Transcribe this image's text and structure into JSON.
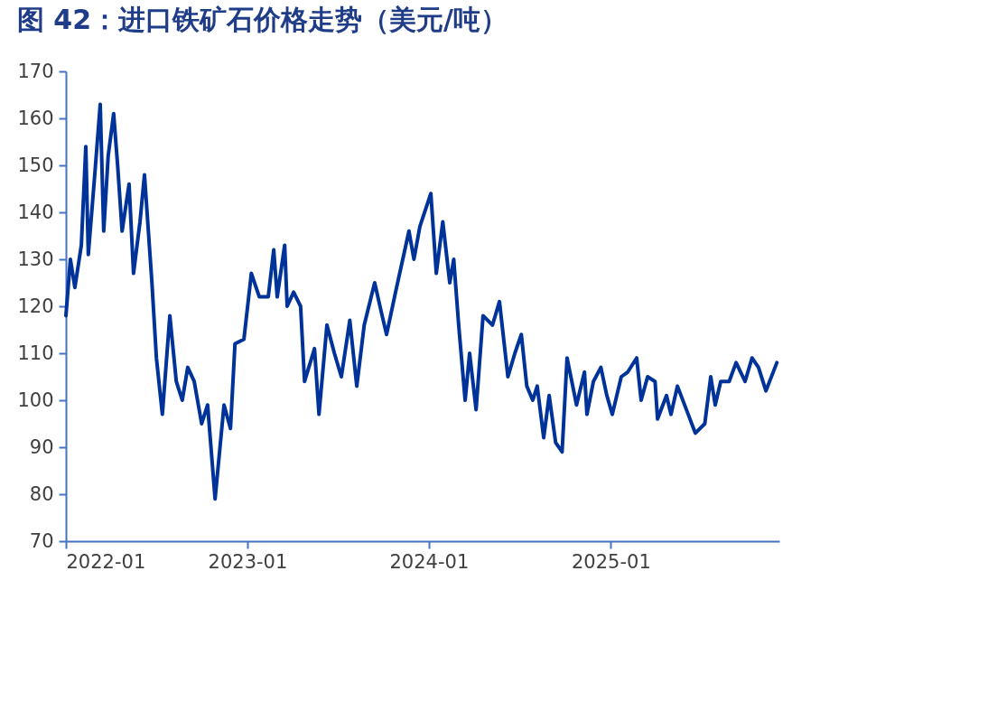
{
  "chart_data": {
    "type": "line",
    "title": "图 42：进口铁矿石价格走势（美元/吨）",
    "x": [
      "2022-01-01",
      "2022-01-10",
      "2022-01-19",
      "2022-02-01",
      "2022-02-10",
      "2022-02-15",
      "2022-02-28",
      "2022-03-11",
      "2022-03-18",
      "2022-03-27",
      "2022-04-07",
      "2022-04-15",
      "2022-04-24",
      "2022-05-08",
      "2022-05-17",
      "2022-05-30",
      "2022-06-08",
      "2022-06-23",
      "2022-07-02",
      "2022-07-14",
      "2022-07-29",
      "2022-08-11",
      "2022-08-23",
      "2022-09-03",
      "2022-09-16",
      "2022-10-01",
      "2022-10-13",
      "2022-10-28",
      "2022-11-15",
      "2022-11-28",
      "2022-12-07",
      "2022-12-25",
      "2023-01-09",
      "2023-01-25",
      "2023-02-12",
      "2023-02-23",
      "2023-03-02",
      "2023-03-17",
      "2023-03-22",
      "2023-04-04",
      "2023-04-18",
      "2023-04-26",
      "2023-05-16",
      "2023-05-25",
      "2023-06-10",
      "2023-06-25",
      "2023-07-09",
      "2023-07-26",
      "2023-08-09",
      "2023-08-24",
      "2023-09-14",
      "2023-09-29",
      "2023-10-08",
      "2023-10-26",
      "2023-11-22",
      "2023-12-02",
      "2023-12-14",
      "2024-01-05",
      "2024-01-16",
      "2024-01-29",
      "2024-02-12",
      "2024-02-20",
      "2024-03-01",
      "2024-03-14",
      "2024-03-23",
      "2024-04-05",
      "2024-04-19",
      "2024-05-08",
      "2024-05-22",
      "2024-06-08",
      "2024-06-22",
      "2024-07-05",
      "2024-07-16",
      "2024-07-28",
      "2024-08-06",
      "2024-08-19",
      "2024-08-30",
      "2024-09-12",
      "2024-09-25",
      "2024-10-05",
      "2024-10-24",
      "2024-11-09",
      "2024-11-14",
      "2024-11-27",
      "2024-12-12",
      "2024-12-24",
      "2025-01-04",
      "2025-01-22",
      "2025-02-04",
      "2025-02-22",
      "2025-03-03",
      "2025-03-16",
      "2025-03-31",
      "2025-04-05",
      "2025-04-23",
      "2025-05-02",
      "2025-05-15",
      "2025-06-02",
      "2025-06-20",
      "2025-07-09",
      "2025-07-21",
      "2025-07-30",
      "2025-08-10",
      "2025-08-27",
      "2025-09-10",
      "2025-09-28",
      "2025-10-12",
      "2025-10-25",
      "2025-11-09",
      "2025-12-01"
    ],
    "series": [
      {
        "color": "#003399",
        "values": [
          118,
          130,
          124,
          133,
          154,
          131,
          148,
          163,
          136,
          152,
          161,
          150,
          136,
          146,
          127,
          138,
          148,
          125,
          109,
          97,
          118,
          104,
          100,
          107,
          104,
          95,
          99,
          79,
          99,
          94,
          112,
          113,
          127,
          122,
          122,
          132,
          122,
          133,
          120,
          123,
          120,
          104,
          111,
          97,
          116,
          110,
          105,
          117,
          103,
          116,
          125,
          118,
          114,
          123,
          136,
          130,
          137,
          144,
          127,
          138,
          125,
          130,
          116,
          100,
          110,
          98,
          118,
          116,
          121,
          105,
          110,
          114,
          103,
          100,
          103,
          92,
          101,
          91,
          89,
          109,
          99,
          106,
          97,
          104,
          107,
          101,
          97,
          105,
          106,
          109,
          100,
          105,
          104,
          96,
          101,
          97,
          103,
          98,
          93,
          95,
          105,
          99,
          104,
          104,
          108,
          104,
          109,
          107,
          102,
          108
        ]
      }
    ],
    "xlim": [
      "2022-01-01",
      "2025-12-06"
    ],
    "xticks": [
      "2022-01",
      "2023-01",
      "2024-01",
      "2025-01"
    ],
    "ylim": [
      70,
      170
    ],
    "yticks": [
      70,
      80,
      90,
      100,
      110,
      120,
      130,
      140,
      150,
      160,
      170
    ],
    "grid": false,
    "marker": "none",
    "line_style": "solid"
  }
}
